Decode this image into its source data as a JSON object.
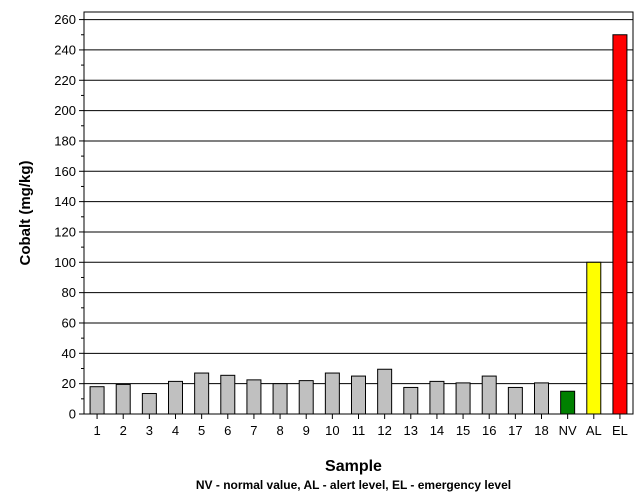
{
  "chart_data": {
    "type": "bar",
    "categories": [
      "1",
      "2",
      "3",
      "4",
      "5",
      "6",
      "7",
      "8",
      "9",
      "10",
      "11",
      "12",
      "13",
      "14",
      "15",
      "16",
      "17",
      "18",
      "NV",
      "AL",
      "EL"
    ],
    "values": [
      18,
      19.5,
      13.5,
      21.5,
      27,
      25.5,
      22.5,
      20,
      22,
      27,
      25,
      29.5,
      17.5,
      21.5,
      20.5,
      25,
      17.5,
      20.5,
      15,
      100,
      250
    ],
    "bar_colors": [
      "#c0c0c0",
      "#c0c0c0",
      "#c0c0c0",
      "#c0c0c0",
      "#c0c0c0",
      "#c0c0c0",
      "#c0c0c0",
      "#c0c0c0",
      "#c0c0c0",
      "#c0c0c0",
      "#c0c0c0",
      "#c0c0c0",
      "#c0c0c0",
      "#c0c0c0",
      "#c0c0c0",
      "#c0c0c0",
      "#c0c0c0",
      "#c0c0c0",
      "#008000",
      "#ffff00",
      "#ff0000"
    ],
    "xlabel": "Sample",
    "ylabel": "Cobalt (mg/kg)",
    "note": "NV - normal value, AL - alert level, EL - emergency level",
    "ylim": [
      0,
      265
    ],
    "yticks": [
      0,
      20,
      40,
      60,
      80,
      100,
      120,
      140,
      160,
      180,
      200,
      220,
      240,
      260
    ],
    "grid": true
  }
}
